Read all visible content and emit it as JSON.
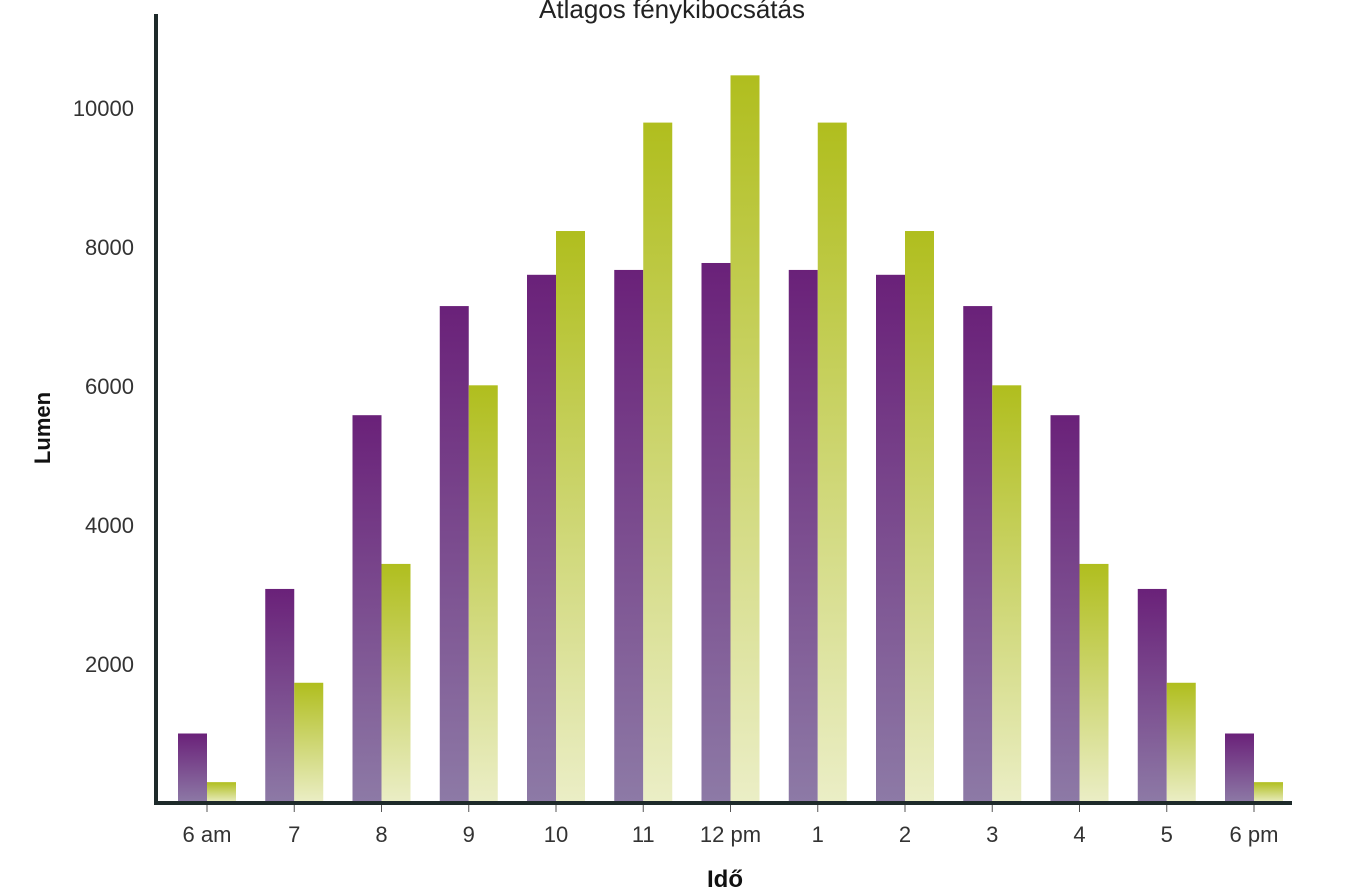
{
  "chart_data": {
    "type": "bar",
    "title": "Átlagos fénykibocsátás",
    "xlabel": "Idő",
    "ylabel": "Lumen",
    "categories": [
      "6 am",
      "7",
      "8",
      "9",
      "10",
      "11",
      "12 pm",
      "1",
      "2",
      "3",
      "4",
      "5",
      "6 pm"
    ],
    "series": [
      {
        "values": [
          1000,
          3080,
          5580,
          7150,
          7600,
          7670,
          7770,
          7670,
          7600,
          7150,
          5580,
          3080,
          1000
        ]
      },
      {
        "values": [
          300,
          1730,
          3440,
          6010,
          8230,
          9790,
          10470,
          9790,
          8230,
          6010,
          3440,
          1730,
          300
        ]
      }
    ],
    "ylim": [
      0,
      10500
    ],
    "yticks": [
      2000,
      4000,
      6000,
      8000,
      10000
    ],
    "grid": false,
    "legend": "none",
    "colors": {
      "series1_top": "#6a2179",
      "series1_bottom": "#8d7aa6",
      "series2_top": "#b0be1e",
      "series2_bottom": "#ebeec6",
      "axis": "#1e2a2a"
    }
  }
}
